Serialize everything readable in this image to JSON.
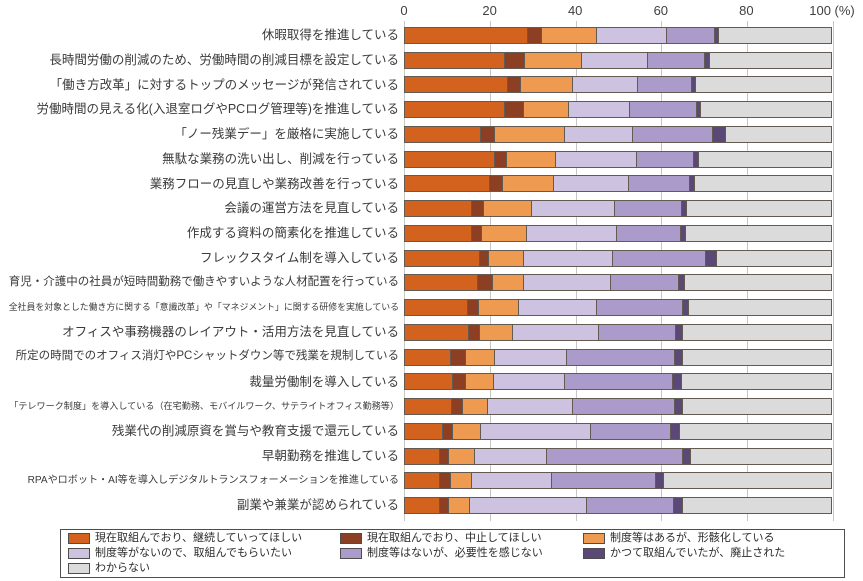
{
  "chart_data": {
    "type": "bar",
    "orientation": "horizontal",
    "stacked": true,
    "value_unit": "%",
    "legend_position": "bottom",
    "grid": true,
    "x_axis": {
      "range": [
        0,
        100
      ],
      "ticks": [
        {
          "label": "0",
          "value": 0
        },
        {
          "label": "20",
          "value": 20
        },
        {
          "label": "40",
          "value": 40
        },
        {
          "label": "60",
          "value": 60
        },
        {
          "label": "80",
          "value": 80
        },
        {
          "label": "100 (%)",
          "value": 100
        }
      ]
    },
    "categories": [
      "休暇取得を推進している",
      "長時間労働の削減のため、労働時間の削減目標を設定している",
      "「働き方改革」に対するトップのメッセージが発信されている",
      "労働時間の見える化(入退室ログやPCログ管理等)を推進している",
      "「ノー残業デー」を厳格に実施している",
      "無駄な業務の洗い出し、削減を行っている",
      "業務フローの見直しや業務改善を行っている",
      "会議の運営方法を見直している",
      "作成する資料の簡素化を推進している",
      "フレックスタイム制を導入している",
      "育児・介護中の社員が短時間勤務で働きやすいような人材配置を行っている",
      "全社員を対象とした働き方に関する「意識改革」や「マネジメント」に関する研修を実施している",
      "オフィスや事務機器のレイアウト・活用方法を見直している",
      "所定の時間でのオフィス消灯やPCシャットダウン等で残業を規制している",
      "裁量労働制を導入している",
      "「テレワーク制度」を導入している（在宅勤務、モバイルワーク、サテライトオフィス勤務等）",
      "残業代の削減原資を賞与や教育支援で還元している",
      "早朝勤務を推進している",
      "RPAやロボット・AI等を導入しデジタルトランスフォーメーションを推進している",
      "副業や兼業が認められている"
    ],
    "series": [
      {
        "name": "現在取組んでおり、継続していってほしい",
        "color": "#D2621E",
        "values": [
          29.0,
          23.6,
          24.4,
          23.6,
          18.1,
          21.3,
          20.2,
          16.0,
          16.0,
          17.8,
          17.4,
          15.0,
          15.3,
          10.9,
          11.5,
          11.1,
          9.2,
          8.3,
          8.3,
          8.3
        ]
      },
      {
        "name": "現在取組んでおり、中止してほしい",
        "color": "#8C3F23",
        "values": [
          3.2,
          4.7,
          2.9,
          4.4,
          3.2,
          2.8,
          2.9,
          2.7,
          2.2,
          2.1,
          3.3,
          2.6,
          2.5,
          3.7,
          3.1,
          2.6,
          2.2,
          2.3,
          2.6,
          2.1
        ]
      },
      {
        "name": "制度等はあるが、形骸化している",
        "color": "#EF9A51",
        "values": [
          13.0,
          13.2,
          12.1,
          10.6,
          16.3,
          11.4,
          11.9,
          11.1,
          10.5,
          8.2,
          7.3,
          9.3,
          7.7,
          6.7,
          6.5,
          6.0,
          6.5,
          6.0,
          5.1,
          5.0
        ]
      },
      {
        "name": "制度等がないので、取組んでもらいたい",
        "color": "#CDC3E0",
        "values": [
          16.2,
          15.4,
          15.2,
          14.2,
          16.0,
          19.0,
          17.6,
          19.5,
          21.0,
          20.7,
          20.3,
          18.3,
          20.1,
          16.7,
          16.5,
          19.9,
          25.9,
          16.7,
          18.7,
          27.4
        ]
      },
      {
        "name": "制度等はないが、必要性を感じない",
        "color": "#AA9BCB",
        "values": [
          11.3,
          13.4,
          12.8,
          15.6,
          18.7,
          13.3,
          14.2,
          15.6,
          15.0,
          21.8,
          16.0,
          19.9,
          18.0,
          25.3,
          25.3,
          23.7,
          18.5,
          31.8,
          24.2,
          20.3
        ]
      },
      {
        "name": "かつて取組んでいたが、廃止された",
        "color": "#5A4877",
        "values": [
          1.0,
          1.2,
          0.8,
          1.1,
          2.9,
          1.2,
          1.3,
          1.3,
          1.2,
          2.6,
          1.4,
          1.6,
          1.5,
          2.0,
          2.0,
          1.8,
          2.2,
          1.9,
          1.9,
          2.0
        ]
      },
      {
        "name": "わからない",
        "color": "#DBDBDB",
        "values": [
          26.3,
          28.5,
          31.8,
          30.5,
          24.8,
          31.0,
          31.9,
          33.8,
          34.1,
          26.8,
          34.3,
          33.3,
          34.9,
          34.7,
          35.1,
          34.9,
          35.5,
          33.0,
          39.2,
          34.9
        ]
      }
    ]
  }
}
